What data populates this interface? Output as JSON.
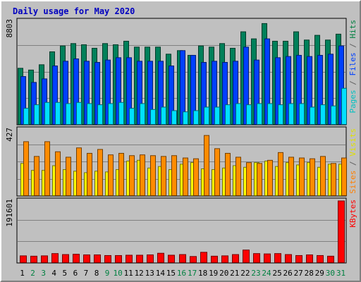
{
  "chart_data": {
    "type": "bar",
    "title": "Daily usage for May 2020",
    "categories": [
      "1",
      "2",
      "3",
      "4",
      "5",
      "6",
      "7",
      "8",
      "9",
      "10",
      "11",
      "12",
      "13",
      "14",
      "15",
      "16",
      "17",
      "18",
      "19",
      "20",
      "21",
      "22",
      "23",
      "24",
      "25",
      "26",
      "27",
      "28",
      "29",
      "30",
      "31"
    ],
    "weekend_days": [
      2,
      3,
      9,
      10,
      16,
      17,
      23,
      24,
      30,
      31
    ],
    "panels": [
      {
        "max_label": "8803",
        "ymax": 8803,
        "legend": [
          {
            "text": "Pages",
            "color": "#00c0c0"
          },
          {
            "text": " / ",
            "color": "#606060"
          },
          {
            "text": "Files",
            "color": "#0040ff"
          },
          {
            "text": " / ",
            "color": "#606060"
          },
          {
            "text": "Hits",
            "color": "#008040"
          }
        ],
        "series": [
          {
            "key": "hits",
            "color": "#00805a",
            "values": [
              4800,
              4650,
              5100,
              6200,
              6700,
              6900,
              6800,
              6500,
              6900,
              6800,
              7100,
              6600,
              6600,
              6600,
              6000,
              6300,
              5900,
              6700,
              6600,
              6900,
              6500,
              7900,
              7300,
              8600,
              7100,
              7100,
              7900,
              7200,
              7600,
              7200,
              7700
            ]
          },
          {
            "key": "files",
            "color": "#0040ff",
            "values": [
              4100,
              3600,
              3900,
              5000,
              5400,
              5600,
              5400,
              5300,
              5500,
              5700,
              5700,
              5400,
              5400,
              5400,
              5000,
              6300,
              5900,
              5300,
              5400,
              5300,
              5400,
              6600,
              5500,
              7300,
              5700,
              5800,
              5900,
              5800,
              5900,
              6000,
              6700
            ]
          },
          {
            "key": "pages",
            "color": "#00e0ff",
            "values": [
              1400,
              1700,
              1900,
              1900,
              1800,
              1900,
              1800,
              1700,
              1800,
              1900,
              1400,
              1800,
              1300,
              1500,
              1200,
              1100,
              1200,
              1500,
              1500,
              1700,
              1800,
              1700,
              1800,
              1800,
              1700,
              1800,
              1800,
              1500,
              1700,
              1600,
              3100
            ]
          }
        ]
      },
      {
        "max_label": "427",
        "ymax": 427,
        "legend": [
          {
            "text": "Sites",
            "color": "#ff8000"
          },
          {
            "text": " / ",
            "color": "#606060"
          },
          {
            "text": "Visits",
            "color": "#e0e000"
          }
        ],
        "series": [
          {
            "key": "visits",
            "color": "#ffff00",
            "values": [
              210,
              165,
              165,
              195,
              170,
              160,
              150,
              160,
              155,
              170,
              225,
              230,
              180,
              190,
              170,
              205,
              215,
              175,
              170,
              180,
              195,
              185,
              215,
              225,
              190,
              215,
              200,
              215,
              185,
              205,
              205
            ]
          },
          {
            "key": "sites",
            "color": "#ff8c00",
            "values": [
              350,
              255,
              350,
              285,
              250,
              310,
              275,
              300,
              265,
              275,
              260,
              265,
              260,
              255,
              260,
              245,
              240,
              390,
              305,
              275,
              250,
              215,
              210,
              230,
              280,
              250,
              245,
              240,
              255,
              210,
              245
            ]
          }
        ]
      },
      {
        "max_label": "191601",
        "ymax": 191601,
        "legend": [
          {
            "text": "KBytes",
            "color": "#ff0000"
          }
        ],
        "series": [
          {
            "key": "kbytes",
            "color": "#ff0000",
            "values": [
              22000,
              21000,
              22000,
              29000,
              26000,
              27000,
              25000,
              25000,
              23000,
              23000,
              24000,
              24000,
              25000,
              30000,
              24000,
              26000,
              20000,
              33000,
              21000,
              22000,
              26000,
              40000,
              29000,
              28000,
              29000,
              26000,
              23000,
              25000,
              23000,
              21000,
              191601
            ]
          }
        ]
      }
    ]
  }
}
